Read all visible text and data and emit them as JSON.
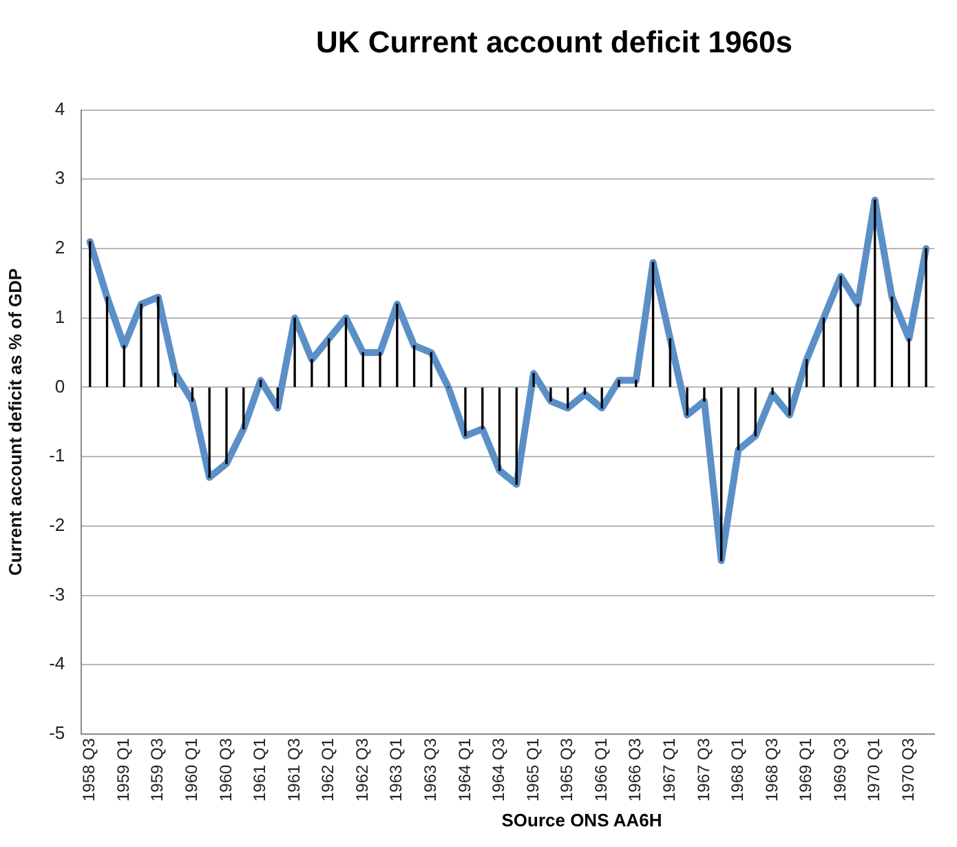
{
  "chart_data": {
    "type": "line",
    "title": "UK Current account deficit 1960s",
    "ylabel": "Current account deficit as % of GDP",
    "categories": [
      "1958 Q3",
      null,
      "1959 Q1",
      null,
      "1959 Q3",
      null,
      "1960 Q1",
      null,
      "1960 Q3",
      null,
      "1961 Q1",
      null,
      "1961 Q3",
      null,
      "1962 Q1",
      null,
      "1962 Q3",
      null,
      "1963 Q1",
      null,
      "1963 Q3",
      null,
      "1964 Q1",
      null,
      "1964 Q3",
      null,
      "1965 Q1",
      null,
      "1965 Q3",
      null,
      "1966 Q1",
      null,
      "1966 Q3",
      null,
      "1967 Q1",
      null,
      "1967 Q3",
      null,
      "1968 Q1",
      null,
      "1968 Q3",
      null,
      "1969 Q1",
      null,
      "1969 Q3",
      null,
      "1970 Q1",
      null,
      "1970 Q3",
      null
    ],
    "series": [
      {
        "type": "bar",
        "color": "#000000",
        "values": [
          2.1,
          1.3,
          0.6,
          1.2,
          1.3,
          0.2,
          -0.2,
          -1.3,
          -1.1,
          -0.6,
          0.1,
          -0.3,
          1.0,
          0.4,
          0.7,
          1.0,
          0.5,
          0.5,
          1.2,
          0.6,
          0.5,
          0.0,
          -0.7,
          -0.6,
          -1.2,
          -1.4,
          0.2,
          -0.2,
          -0.3,
          -0.1,
          -0.3,
          0.1,
          0.1,
          1.8,
          0.7,
          -0.4,
          -0.2,
          -2.5,
          -0.9,
          -0.7,
          -0.1,
          -0.4,
          0.4,
          1.0,
          1.6,
          1.2,
          2.7,
          1.3,
          0.7,
          2.0
        ]
      },
      {
        "color": "#5b8fc7",
        "values": [
          2.1,
          1.3,
          0.6,
          1.2,
          1.3,
          0.2,
          -0.2,
          -1.3,
          -1.1,
          -0.6,
          0.1,
          -0.3,
          1.0,
          0.4,
          0.7,
          1.0,
          0.5,
          0.5,
          1.2,
          0.6,
          0.5,
          0.0,
          -0.7,
          -0.6,
          -1.2,
          -1.4,
          0.2,
          -0.2,
          -0.3,
          -0.1,
          -0.3,
          0.1,
          0.1,
          1.8,
          0.7,
          -0.4,
          -0.2,
          -2.5,
          -0.9,
          -0.7,
          -0.1,
          -0.4,
          0.4,
          1.0,
          1.6,
          1.2,
          2.7,
          1.3,
          0.7,
          2.0
        ]
      }
    ],
    "ylim": [
      -5,
      4
    ],
    "yticks": [
      -5,
      -4,
      -3,
      -2,
      -1,
      0,
      1,
      2,
      3,
      4
    ],
    "grid": "y",
    "legend": false,
    "marker": "none",
    "line_style": "solid",
    "annotations": [
      "SOurce ONS AA6H"
    ]
  }
}
